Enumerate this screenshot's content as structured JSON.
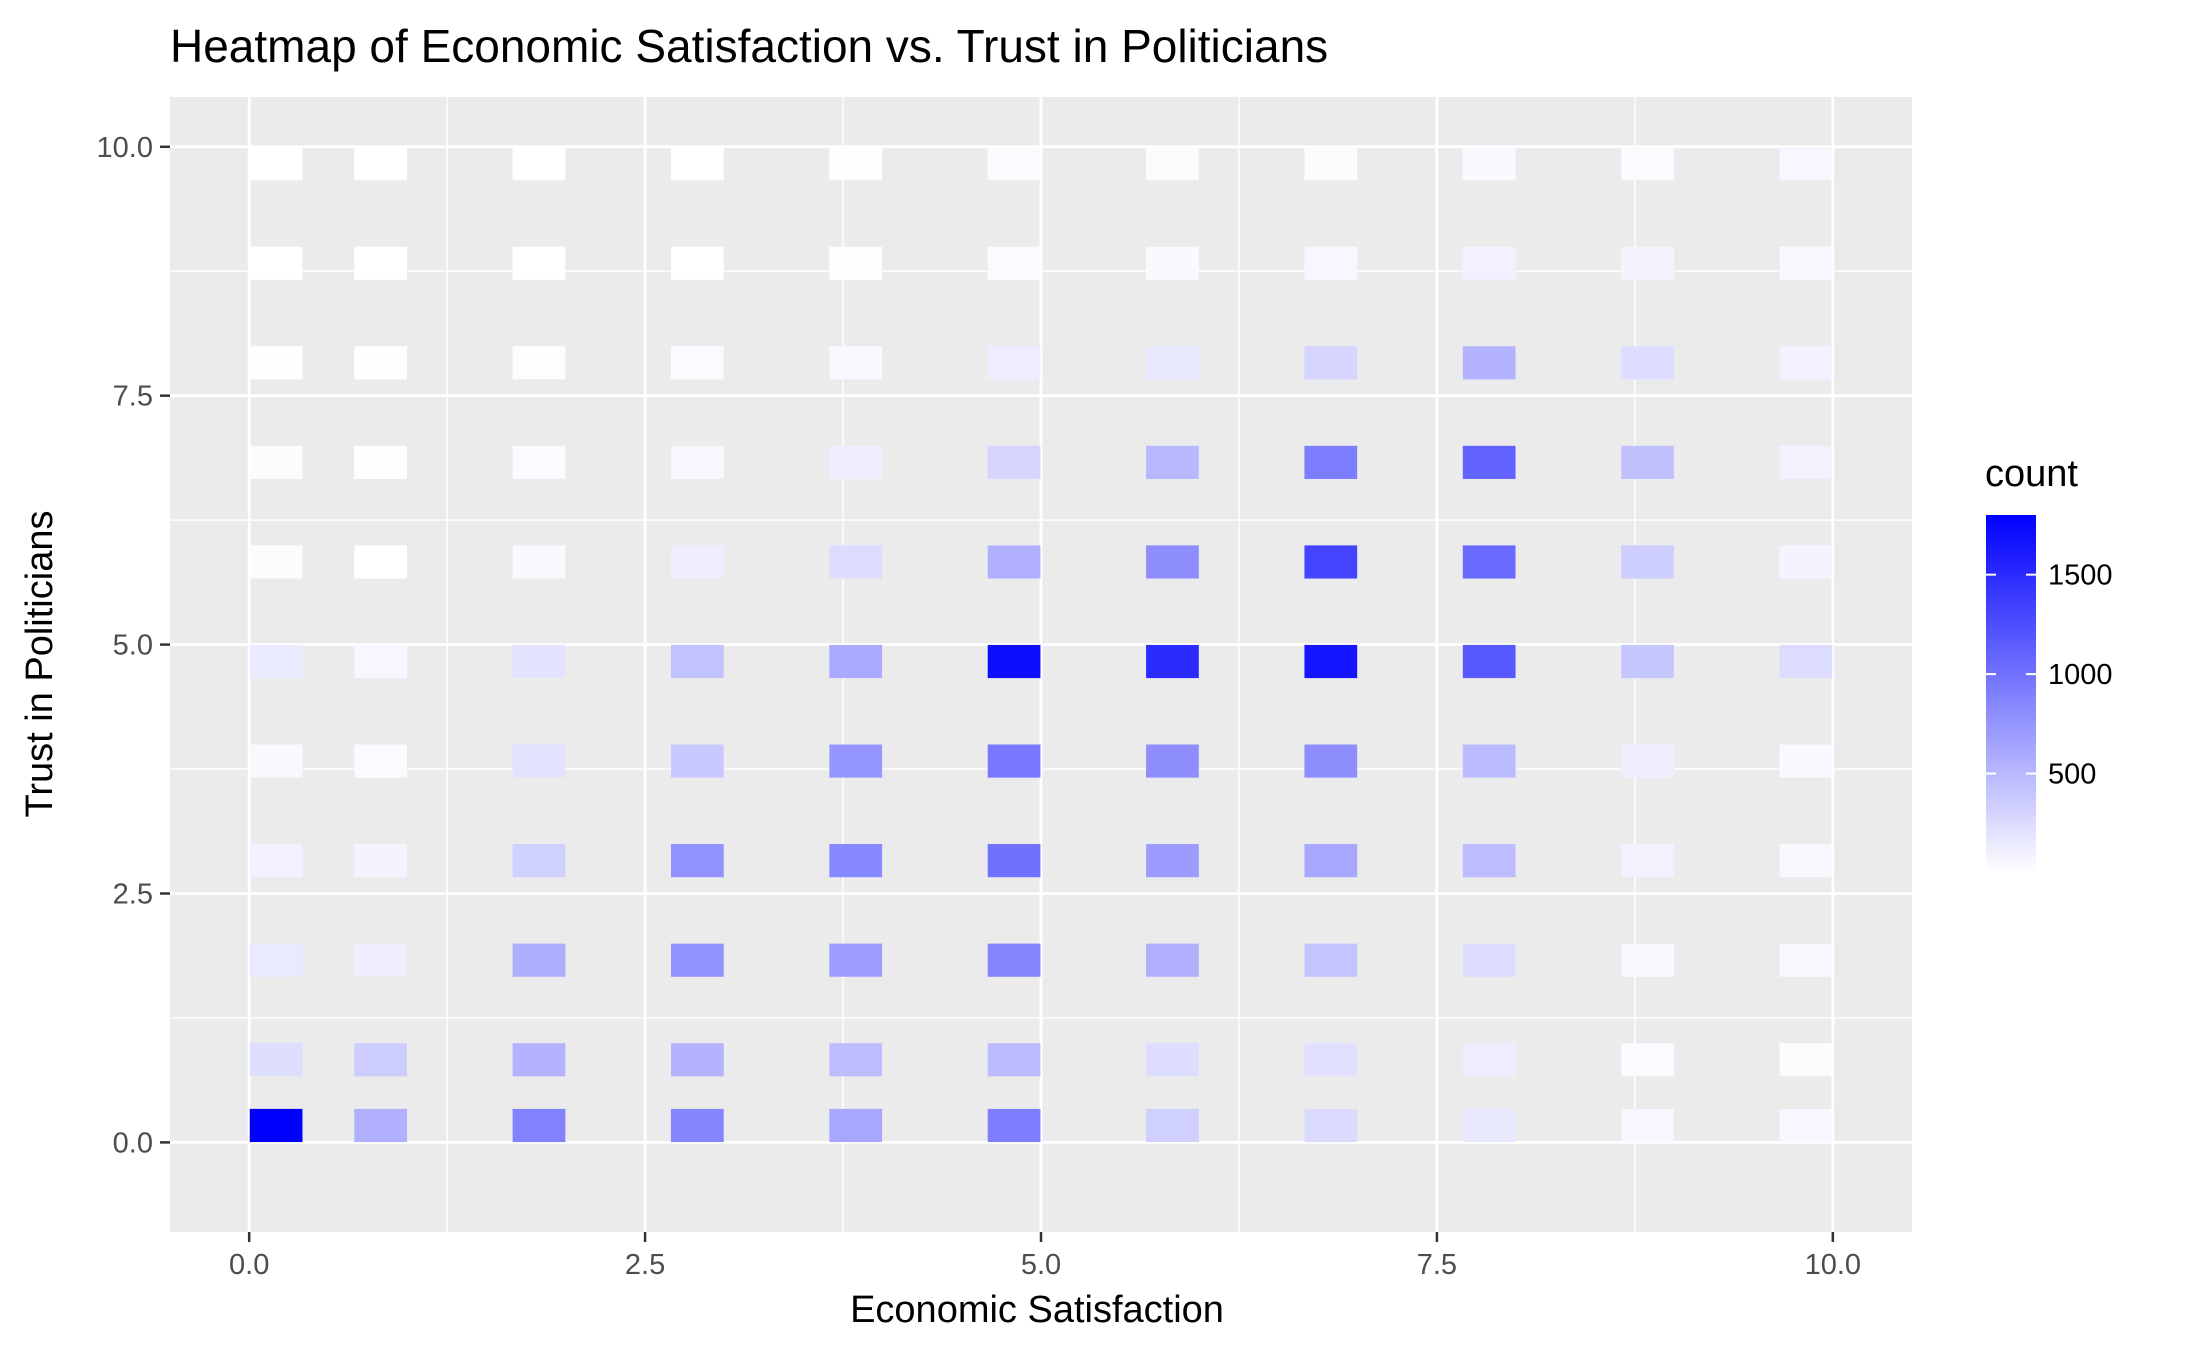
{
  "chart_data": {
    "type": "heatmap",
    "title": "Heatmap of Economic Satisfaction vs. Trust in Politicians",
    "xlabel": "Economic Satisfaction",
    "ylabel": "Trust in Politicians",
    "xlim": [
      -0.5,
      10.5
    ],
    "ylim": [
      -0.9,
      10.5
    ],
    "x_ticks": [
      {
        "value": 0.0,
        "label": "0.0"
      },
      {
        "value": 2.5,
        "label": "2.5"
      },
      {
        "value": 5.0,
        "label": "5.0"
      },
      {
        "value": 7.5,
        "label": "7.5"
      },
      {
        "value": 10.0,
        "label": "10.0"
      }
    ],
    "y_ticks": [
      {
        "value": 0.0,
        "label": "0.0"
      },
      {
        "value": 2.5,
        "label": "2.5"
      },
      {
        "value": 5.0,
        "label": "5.0"
      },
      {
        "value": 7.5,
        "label": "7.5"
      },
      {
        "value": 10.0,
        "label": "10.0"
      }
    ],
    "grid": true,
    "x": [
      0.17,
      0.83,
      1.83,
      2.83,
      3.83,
      4.83,
      5.83,
      6.83,
      7.83,
      8.83,
      9.83
    ],
    "y": [
      0.17,
      0.83,
      1.83,
      2.83,
      3.83,
      4.83,
      5.83,
      6.83,
      7.83,
      8.83,
      9.83
    ],
    "values": [
      [
        1800,
        560,
        880,
        860,
        620,
        910,
        330,
        260,
        160,
        60,
        60
      ],
      [
        230,
        360,
        540,
        540,
        460,
        480,
        240,
        210,
        130,
        30,
        20
      ],
      [
        150,
        120,
        570,
        770,
        690,
        860,
        560,
        420,
        240,
        50,
        50
      ],
      [
        100,
        80,
        330,
        780,
        850,
        1000,
        700,
        620,
        470,
        90,
        50
      ],
      [
        50,
        30,
        200,
        380,
        740,
        950,
        800,
        800,
        480,
        120,
        40
      ],
      [
        140,
        60,
        200,
        430,
        600,
        1700,
        1500,
        1650,
        1180,
        400,
        250
      ],
      [
        20,
        0,
        40,
        120,
        250,
        560,
        800,
        1320,
        1050,
        340,
        80
      ],
      [
        20,
        10,
        30,
        60,
        120,
        300,
        500,
        920,
        1100,
        440,
        90
      ],
      [
        10,
        10,
        15,
        30,
        50,
        130,
        160,
        300,
        540,
        240,
        100
      ],
      [
        0,
        0,
        0,
        0,
        5,
        30,
        40,
        60,
        100,
        80,
        50
      ],
      [
        0,
        0,
        0,
        0,
        5,
        30,
        20,
        20,
        40,
        30,
        60
      ]
    ],
    "legend": {
      "title": "count",
      "position": "right",
      "min": 0,
      "max": 1800,
      "ticks": [
        {
          "value": 500,
          "label": "500"
        },
        {
          "value": 1000,
          "label": "1000"
        },
        {
          "value": 1500,
          "label": "1500"
        }
      ],
      "low_color": "#ffffff",
      "high_color": "#0000ff"
    },
    "panel_color": "#ebebeb",
    "grid_color": "#ffffff"
  }
}
